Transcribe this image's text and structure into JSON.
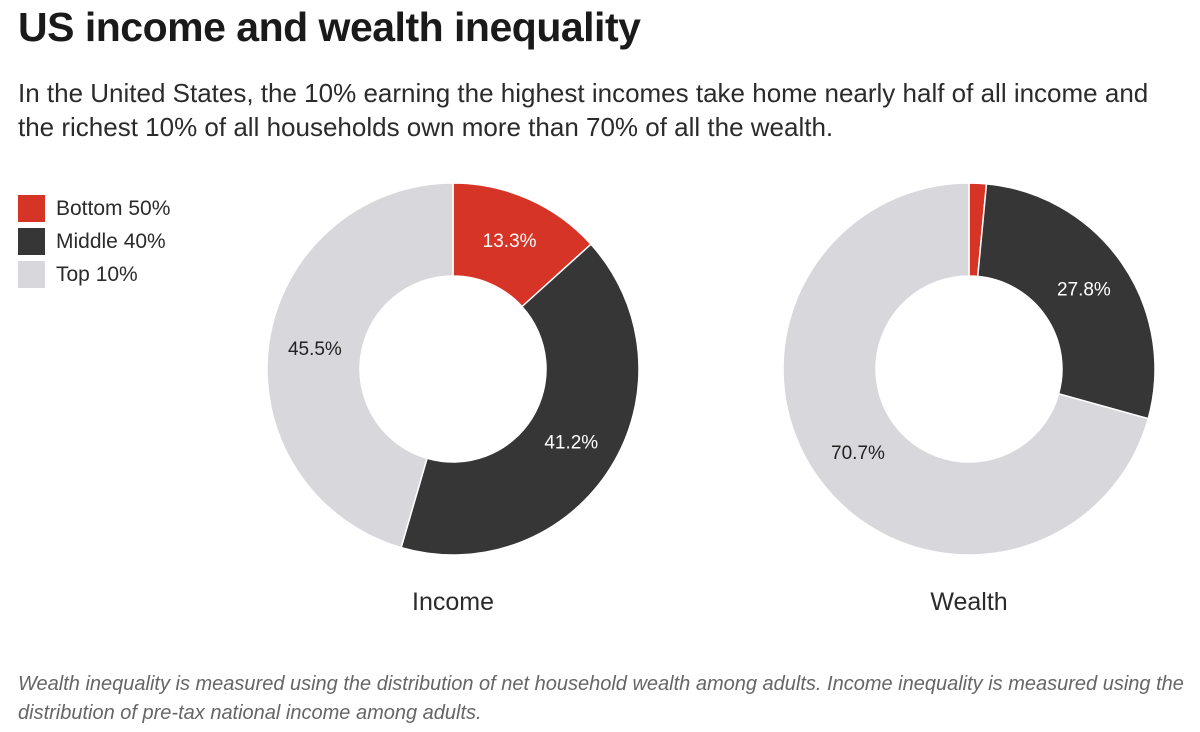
{
  "title": "US income and wealth inequality",
  "subtitle": "In the United States, the 10% earning the highest incomes take home nearly half of all income and the richest 10% of all households own more than 70% of all the wealth.",
  "legend": [
    {
      "label": "Bottom 50%",
      "color": "#d63426"
    },
    {
      "label": "Middle 40%",
      "color": "#363636"
    },
    {
      "label": "Top 10%",
      "color": "#d8d8dc"
    }
  ],
  "note": "Wealth inequality is measured using the distribution of net household wealth among adults. Income inequality is measured using the distribution of pre-tax national income among adults.",
  "chart_data": [
    {
      "type": "pie",
      "variant": "donut",
      "name": "Income",
      "categories": [
        "Bottom 50%",
        "Middle 40%",
        "Top 10%"
      ],
      "values": [
        13.3,
        41.2,
        45.5
      ],
      "value_labels": [
        "13.3%",
        "41.2%",
        "45.5%"
      ],
      "colors": [
        "#d63426",
        "#363636",
        "#d8d8dc"
      ],
      "label_colors": [
        "#ffffff",
        "#ffffff",
        "#222222"
      ]
    },
    {
      "type": "pie",
      "variant": "donut",
      "name": "Wealth",
      "categories": [
        "Bottom 50%",
        "Middle 40%",
        "Top 10%"
      ],
      "values": [
        1.5,
        27.8,
        70.7
      ],
      "value_labels": [
        "",
        "27.8%",
        "70.7%"
      ],
      "colors": [
        "#d63426",
        "#363636",
        "#d8d8dc"
      ],
      "label_colors": [
        "#ffffff",
        "#ffffff",
        "#222222"
      ]
    }
  ]
}
